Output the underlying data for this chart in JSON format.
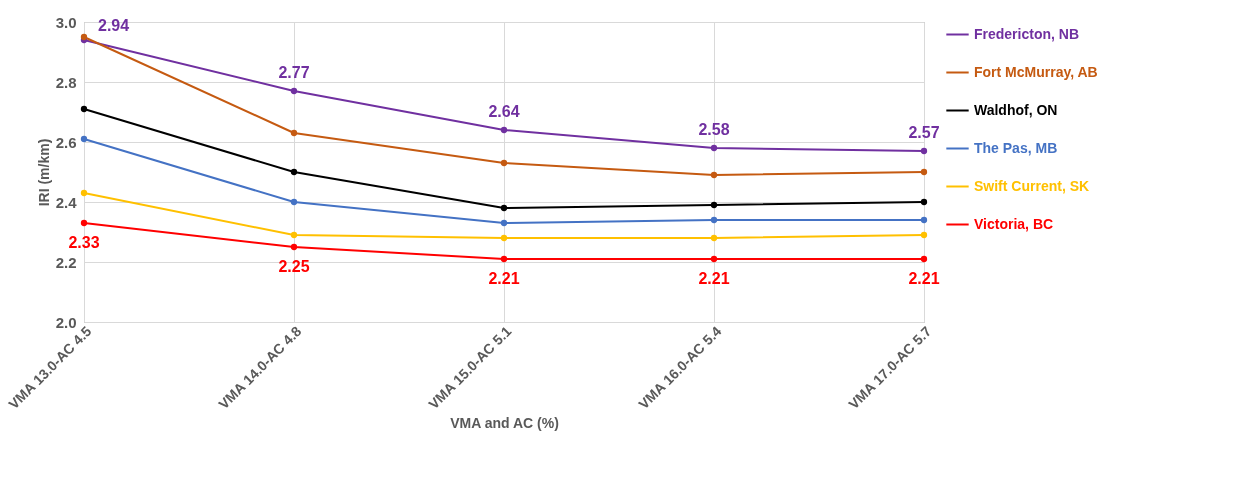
{
  "chart_data": {
    "type": "line",
    "xlabel": "VMA and AC (%)",
    "ylabel": "IRI (m/km)",
    "categories": [
      "VMA 13.0-AC 4.5",
      "VMA 14.0-AC 4.8",
      "VMA 15.0-AC 5.1",
      "VMA 16.0-AC 5.4",
      "VMA 17.0-AC 5.7"
    ],
    "series": [
      {
        "name": "Fredericton, NB",
        "color": "#7030a0",
        "values": [
          2.94,
          2.77,
          2.64,
          2.58,
          2.57
        ],
        "value_labels": [
          "2.94",
          "2.77",
          "2.64",
          "2.58",
          "2.57"
        ]
      },
      {
        "name": "Fort McMurray, AB",
        "color": "#c55a11",
        "values": [
          2.95,
          2.63,
          2.53,
          2.49,
          2.5
        ]
      },
      {
        "name": "Waldhof, ON",
        "color": "#000000",
        "values": [
          2.71,
          2.5,
          2.38,
          2.39,
          2.4
        ]
      },
      {
        "name": "The Pas, MB",
        "color": "#4472c4",
        "values": [
          2.61,
          2.4,
          2.33,
          2.34,
          2.34
        ]
      },
      {
        "name": "Swift Current, SK",
        "color": "#ffc000",
        "values": [
          2.43,
          2.29,
          2.28,
          2.28,
          2.29
        ]
      },
      {
        "name": "Victoria, BC",
        "color": "#ff0000",
        "values": [
          2.33,
          2.25,
          2.21,
          2.21,
          2.21
        ],
        "value_labels": [
          "2.33",
          "2.25",
          "2.21",
          "2.21",
          "2.21"
        ]
      }
    ],
    "ylim": [
      2.0,
      3.0
    ],
    "yticks": [
      {
        "value": 2.0,
        "label": "2.0"
      },
      {
        "value": 2.2,
        "label": "2.2"
      },
      {
        "value": 2.4,
        "label": "2.4"
      },
      {
        "value": 2.6,
        "label": "2.6"
      },
      {
        "value": 2.8,
        "label": "2.8"
      },
      {
        "value": 3.0,
        "label": "3.0"
      }
    ],
    "grid": true,
    "legend": "right",
    "marker": "circle",
    "line_style": "solid"
  }
}
